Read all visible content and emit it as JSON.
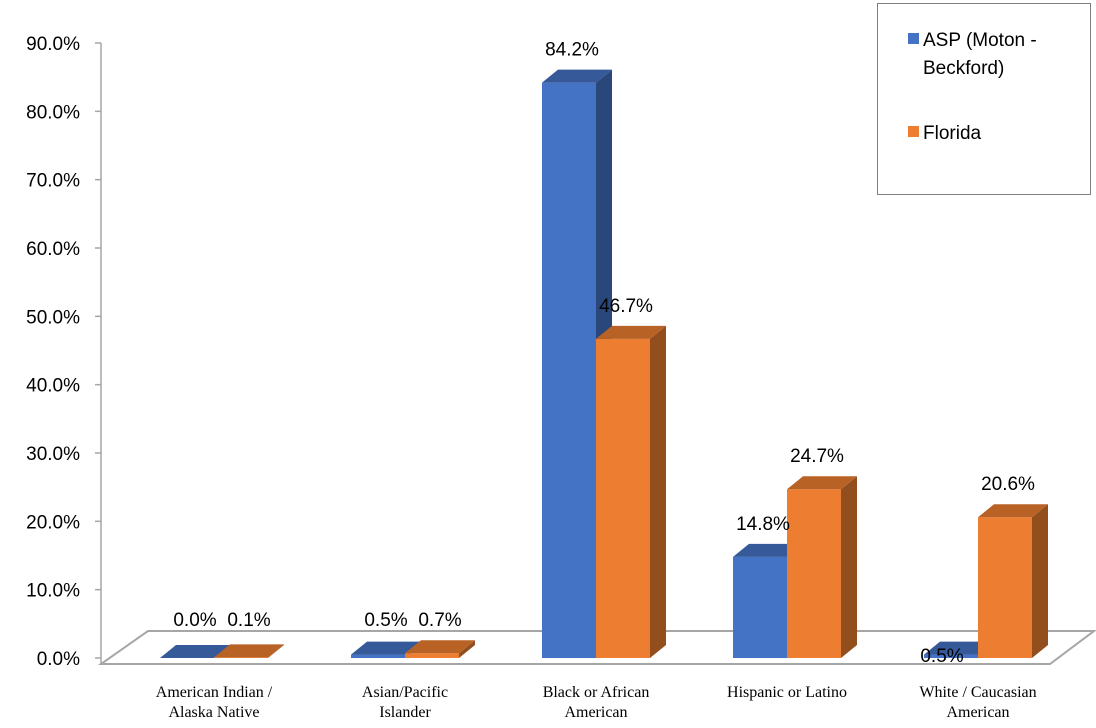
{
  "chart_data": {
    "type": "bar",
    "categories": [
      [
        "American Indian /",
        "Alaska Native"
      ],
      [
        "Asian/Pacific",
        "Islander"
      ],
      [
        "Black or African",
        "American"
      ],
      [
        "Hispanic or Latino"
      ],
      [
        "White / Caucasian",
        "American"
      ]
    ],
    "series": [
      {
        "name": "ASP (Moton - Beckford)",
        "values": [
          0.0,
          0.5,
          84.2,
          14.8,
          0.5
        ],
        "labels": [
          "0.0%",
          "0.5%",
          "84.2%",
          "14.8%",
          "0.5%"
        ],
        "color": "#4472C4"
      },
      {
        "name": "Florida",
        "values": [
          0.1,
          0.7,
          46.7,
          24.7,
          20.6
        ],
        "labels": [
          "0.1%",
          "0.7%",
          "46.7%",
          "24.7%",
          "20.6%"
        ],
        "color": "#ED7D31"
      }
    ],
    "ylim": [
      0,
      90
    ],
    "yticks": [
      "0.0%",
      "10.0%",
      "20.0%",
      "30.0%",
      "40.0%",
      "50.0%",
      "60.0%",
      "70.0%",
      "80.0%",
      "90.0%"
    ],
    "title": "",
    "xlabel": "",
    "ylabel": "",
    "legend_position": "top-right",
    "grid": false,
    "style": "3d-clustered-column"
  },
  "legend": {
    "asp_label_line1": "ASP (Moton -",
    "asp_label_line2": "Beckford)",
    "florida_label": "Florida"
  }
}
